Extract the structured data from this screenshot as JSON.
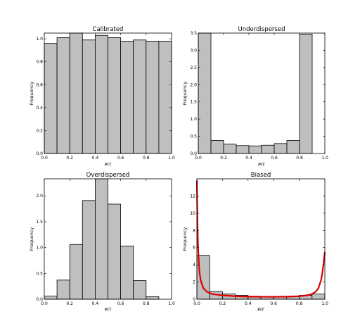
{
  "figure": {
    "background": "#ffffff",
    "bar_fill": "#bfbfbf",
    "bar_stroke": "#000000",
    "curve_color": "#dd0000"
  },
  "chart_data": [
    {
      "type": "bar",
      "title": "Calibrated",
      "xlabel": "PIT",
      "ylabel": "Frequency",
      "bin_edges": [
        0.0,
        0.1,
        0.2,
        0.3,
        0.4,
        0.5,
        0.6,
        0.7,
        0.8,
        0.9,
        1.0
      ],
      "values": [
        0.96,
        1.01,
        1.05,
        0.99,
        1.03,
        1.01,
        0.98,
        0.99,
        0.98,
        0.98
      ],
      "xlim": [
        0,
        1
      ],
      "ylim": [
        0,
        1.05
      ],
      "xticks": [
        "0.0",
        "0.2",
        "0.4",
        "0.6",
        "0.8",
        "1.0"
      ],
      "yticks": [
        "0.0",
        "0.2",
        "0.4",
        "0.6",
        "0.8",
        "1.0"
      ],
      "ytick_values": [
        0,
        0.2,
        0.4,
        0.6,
        0.8,
        1.0
      ],
      "xtick_values": [
        0,
        0.2,
        0.4,
        0.6,
        0.8,
        1.0
      ],
      "grid": false
    },
    {
      "type": "bar",
      "title": "Underdispersed",
      "xlabel": "PIT",
      "ylabel": "Frequency",
      "bin_edges": [
        0.0,
        0.1,
        0.2,
        0.3,
        0.4,
        0.5,
        0.6,
        0.7,
        0.8,
        0.9,
        1.0
      ],
      "values": [
        3.5,
        0.38,
        0.27,
        0.23,
        0.22,
        0.24,
        0.29,
        0.38,
        3.47,
        0.0
      ],
      "values_note_free": true,
      "xlim": [
        0,
        1
      ],
      "ylim": [
        0,
        3.5
      ],
      "xticks": [
        "0.0",
        "0.2",
        "0.4",
        "0.6",
        "0.8",
        "1.0"
      ],
      "yticks": [
        "0.0",
        "0.5",
        "1.0",
        "1.5",
        "2.0",
        "2.5",
        "3.0",
        "3.5"
      ],
      "ytick_values": [
        0,
        0.5,
        1.0,
        1.5,
        2.0,
        2.5,
        3.0,
        3.5
      ],
      "xtick_values": [
        0,
        0.2,
        0.4,
        0.6,
        0.8,
        1.0
      ],
      "grid": false
    },
    {
      "type": "bar",
      "title": "Overdispersed",
      "xlabel": "PIT",
      "ylabel": "Frequency",
      "bin_edges": [
        0.0,
        0.1,
        0.2,
        0.3,
        0.4,
        0.5,
        0.6,
        0.7,
        0.8,
        0.9,
        1.0
      ],
      "values": [
        0.06,
        0.37,
        1.06,
        1.91,
        2.33,
        1.84,
        1.03,
        0.36,
        0.05,
        0.0
      ],
      "xlim": [
        0,
        1
      ],
      "ylim": [
        0,
        2.33
      ],
      "xticks": [
        "0.0",
        "0.2",
        "0.4",
        "0.6",
        "0.8",
        "1.0"
      ],
      "yticks": [
        "0.0",
        "0.5",
        "1.0",
        "1.5",
        "2.0"
      ],
      "ytick_values": [
        0,
        0.5,
        1.0,
        1.5,
        2.0
      ],
      "xtick_values": [
        0,
        0.2,
        0.4,
        0.6,
        0.8,
        1.0
      ],
      "grid": false
    },
    {
      "type": "bar",
      "title": "Biased",
      "xlabel": "PIT",
      "ylabel": "Frequency",
      "bin_edges": [
        0.0,
        0.1,
        0.2,
        0.3,
        0.4,
        0.5,
        0.6,
        0.7,
        0.8,
        0.9,
        1.0
      ],
      "values": [
        5.1,
        0.9,
        0.6,
        0.45,
        0.35,
        0.3,
        0.3,
        0.35,
        0.45,
        0.6
      ],
      "xlim": [
        0,
        1
      ],
      "ylim": [
        0,
        14
      ],
      "xticks": [
        "0.0",
        "0.2",
        "0.4",
        "0.6",
        "0.8",
        "1.0"
      ],
      "yticks": [
        "0",
        "2",
        "4",
        "6",
        "8",
        "10",
        "12"
      ],
      "ytick_values": [
        0,
        2,
        4,
        6,
        8,
        10,
        12
      ],
      "xtick_values": [
        0,
        0.2,
        0.4,
        0.6,
        0.8,
        1.0
      ],
      "grid": false,
      "curve": {
        "type": "line",
        "x": [
          0.0,
          0.005,
          0.01,
          0.02,
          0.03,
          0.05,
          0.08,
          0.12,
          0.2,
          0.3,
          0.4,
          0.5,
          0.6,
          0.7,
          0.8,
          0.86,
          0.9,
          0.93,
          0.95,
          0.97,
          0.98,
          0.99,
          1.0
        ],
        "y": [
          13.8,
          8.5,
          5.8,
          3.2,
          2.2,
          1.3,
          0.85,
          0.6,
          0.45,
          0.35,
          0.3,
          0.28,
          0.28,
          0.3,
          0.35,
          0.45,
          0.6,
          0.9,
          1.3,
          2.2,
          3.0,
          4.2,
          5.5
        ]
      }
    }
  ]
}
